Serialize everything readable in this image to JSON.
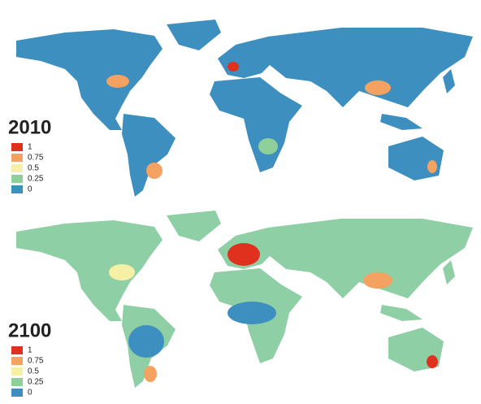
{
  "maps": [
    {
      "year": "2010",
      "base_color": "#3d8fc0",
      "legend": [
        {
          "label": "1",
          "color": "#e0301e"
        },
        {
          "label": "0.75",
          "color": "#f4a261"
        },
        {
          "label": "0.5",
          "color": "#f6efa6"
        },
        {
          "label": "0.25",
          "color": "#8fcf99"
        },
        {
          "label": "0",
          "color": "#3d8fc0"
        }
      ]
    },
    {
      "year": "2100",
      "base_color": "#8fcfa5",
      "legend": [
        {
          "label": "1",
          "color": "#e0301e"
        },
        {
          "label": "0.75",
          "color": "#f4a261"
        },
        {
          "label": "0.5",
          "color": "#f6efa6"
        },
        {
          "label": "0.25",
          "color": "#8fcf99"
        },
        {
          "label": "0",
          "color": "#3d8fc0"
        }
      ]
    }
  ]
}
